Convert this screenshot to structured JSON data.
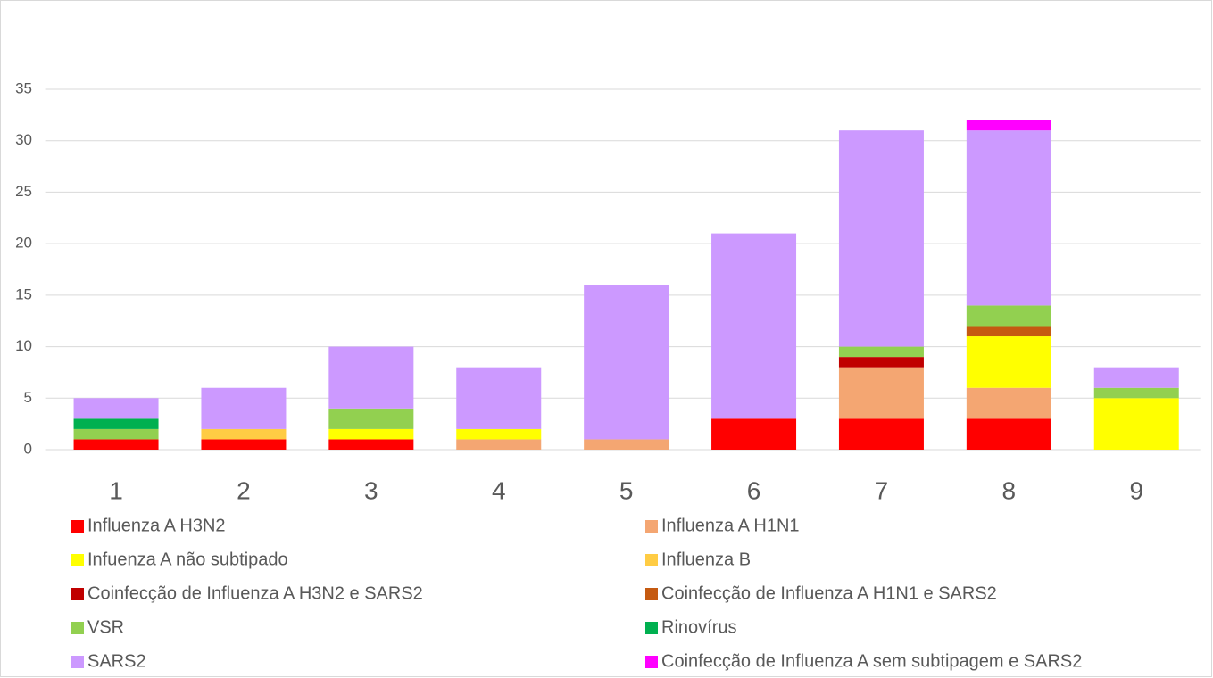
{
  "chart_data": {
    "type": "stacked_bar",
    "categories": [
      "1",
      "2",
      "3",
      "4",
      "5",
      "6",
      "7",
      "8",
      "9"
    ],
    "series": [
      {
        "name": "Influenza A H3N2",
        "color": "#ff0000",
        "values": [
          1,
          1,
          1,
          0,
          0,
          3,
          3,
          3,
          0
        ]
      },
      {
        "name": "Influenza A H1N1",
        "color": "#f4a672",
        "values": [
          0,
          0,
          0,
          1,
          1,
          0,
          5,
          3,
          0
        ]
      },
      {
        "name": "Infuenza A não subtipado",
        "color": "#ffff00",
        "values": [
          0,
          0,
          1,
          1,
          0,
          0,
          0,
          5,
          5
        ]
      },
      {
        "name": "Influenza B",
        "color": "#ffcc44",
        "values": [
          0,
          1,
          0,
          0,
          0,
          0,
          0,
          0,
          0
        ]
      },
      {
        "name": "Coinfecção de Influenza A H3N2 e SARS2",
        "color": "#c00000",
        "values": [
          0,
          0,
          0,
          0,
          0,
          0,
          1,
          0,
          0
        ]
      },
      {
        "name": "Coinfecção de Influenza A H1N1 e SARS2",
        "color": "#c55a11",
        "values": [
          0,
          0,
          0,
          0,
          0,
          0,
          0,
          1,
          0
        ]
      },
      {
        "name": "VSR",
        "color": "#92d050",
        "values": [
          1,
          0,
          2,
          0,
          0,
          0,
          1,
          2,
          1
        ]
      },
      {
        "name": "Rinovírus",
        "color": "#00b050",
        "values": [
          1,
          0,
          0,
          0,
          0,
          0,
          0,
          0,
          0
        ]
      },
      {
        "name": "SARS2",
        "color": "#cc99ff",
        "values": [
          2,
          4,
          6,
          6,
          15,
          18,
          21,
          17,
          2
        ]
      },
      {
        "name": "Coinfecção de Influenza A sem subtipagem e SARS2",
        "color": "#ff00ff",
        "values": [
          0,
          0,
          0,
          0,
          0,
          0,
          0,
          1,
          0
        ]
      }
    ],
    "ylim": [
      0,
      40
    ],
    "yticks": [
      0,
      5,
      10,
      15,
      20,
      25,
      30,
      35
    ],
    "grid": true
  }
}
